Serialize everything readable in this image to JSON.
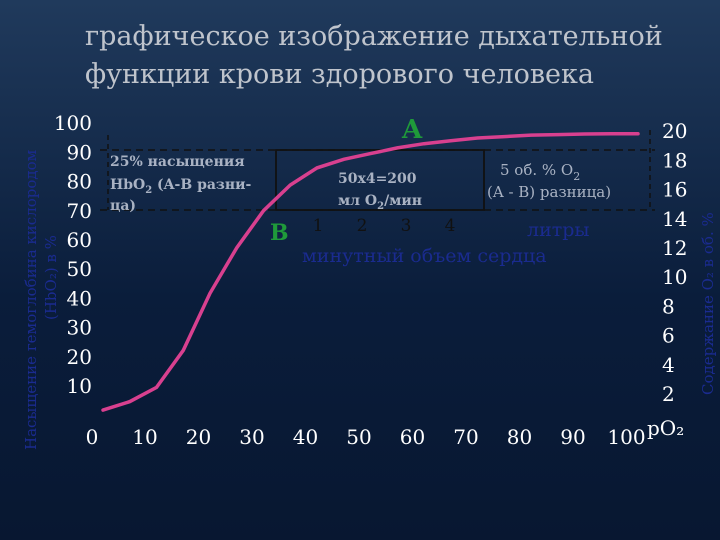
{
  "chart_data": {
    "type": "line",
    "title_lines": [
      "графическое изображение дыхательной",
      "функции крови здорового человека"
    ],
    "ylabel_left_lines": [
      "Насыщение гемоглобина кислородом",
      "(HbO₂) в %"
    ],
    "ylabel_right": "Содержание O₂ в об. %",
    "xlabel": "pO₂",
    "x_ticks": [
      "0",
      "10",
      "20",
      "30",
      "40",
      "50",
      "60",
      "70",
      "80",
      "90",
      "100"
    ],
    "y_left_ticks": [
      "10",
      "20",
      "30",
      "40",
      "50",
      "60",
      "70",
      "80",
      "90",
      "100"
    ],
    "y_right_ticks": [
      "2",
      "4",
      "6",
      "8",
      "10",
      "12",
      "14",
      "16",
      "18",
      "20"
    ],
    "xlim": [
      0,
      100
    ],
    "ylim": [
      0,
      100
    ],
    "series": [
      {
        "x": [
          0,
          5,
          10,
          15,
          20,
          25,
          30,
          35,
          40,
          45,
          50,
          55,
          60,
          65,
          70,
          75,
          80,
          85,
          90,
          95,
          100
        ],
        "y": [
          1,
          4,
          9,
          22,
          42,
          58,
          71,
          80,
          86,
          89,
          91,
          93,
          94.5,
          95.5,
          96.5,
          97,
          97.5,
          97.7,
          97.9,
          98,
          98
        ]
      }
    ],
    "point_labels": {
      "a": "A",
      "b": "B"
    },
    "minute_ticks": [
      "1",
      "2",
      "3",
      "4"
    ],
    "annotations": {
      "saturation": [
        "25% насыщения",
        "HbO",
        "2",
        " (A-B разни-",
        "ца)"
      ],
      "calc": [
        "50x4=200",
        "мл O",
        "2",
        "/мин"
      ],
      "volume": [
        "5 об. % O",
        "2",
        "(A - B) разница)"
      ],
      "liters": "литры",
      "minute_volume": "минутный объем сердца"
    },
    "colors": {
      "curve": "#d8408f",
      "axis_text": "#ffffff",
      "title": "#bfc4cc",
      "faded_text": "#cfd5e2",
      "point_label": "#1f9a3a",
      "guides": "#111111"
    }
  }
}
